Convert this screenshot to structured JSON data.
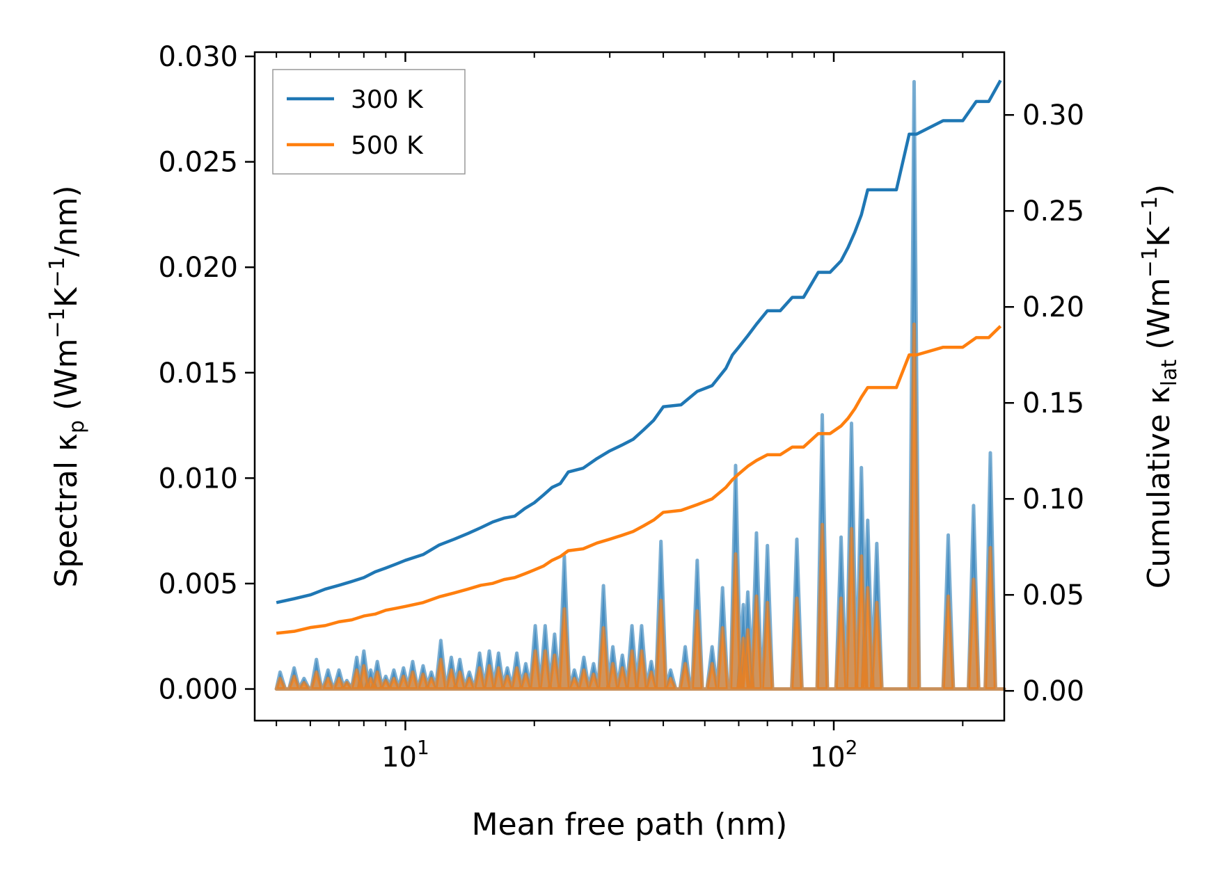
{
  "chart_data": {
    "type": "line",
    "title": "",
    "xlabel": "Mean free path (nm)",
    "xscale": "log",
    "xlim": [
      4.45,
      250
    ],
    "x_ticks": [
      {
        "value": 10,
        "label": "10",
        "exp": "1"
      },
      {
        "value": 100,
        "label": "10",
        "exp": "2"
      }
    ],
    "ylabel_left": {
      "parts": [
        "Spectral κ",
        "p",
        " (Wm",
        "−1",
        "K",
        "−1",
        "/nm)"
      ]
    },
    "ylim_left": [
      -0.0015,
      0.0302
    ],
    "yticks_left": [
      "0.000",
      "0.005",
      "0.010",
      "0.015",
      "0.020",
      "0.025",
      "0.030"
    ],
    "ylabel_right": {
      "parts": [
        "Cumulative κ",
        "lat",
        " (Wm",
        "−1",
        "K",
        "−1",
        ")"
      ]
    },
    "ylim_right": [
      -0.0155,
      0.3327
    ],
    "yticks_right": [
      "0.00",
      "0.05",
      "0.10",
      "0.15",
      "0.20",
      "0.25",
      "0.30"
    ],
    "legend_position": "top-left",
    "series": [
      {
        "name": "300 K",
        "color": "#1f77b4",
        "axis": "right",
        "x": [
          5.0,
          5.5,
          6.0,
          6.5,
          7.0,
          7.5,
          8.0,
          8.5,
          9.0,
          9.5,
          10.0,
          11.0,
          12.0,
          13.0,
          14.0,
          15.0,
          16.0,
          17.0,
          18.0,
          19.0,
          20.0,
          21.0,
          22.0,
          23.0,
          24.0,
          26.0,
          28.0,
          30.0,
          32.0,
          34.0,
          36.0,
          38.0,
          40.0,
          44.0,
          48.0,
          52.0,
          56.0,
          58.0,
          60.0,
          63.0,
          66.0,
          70.0,
          75.0,
          80.0,
          85.0,
          92.0,
          98.0,
          104.0,
          108.0,
          112.0,
          116.0,
          120.0,
          126.0,
          140.0,
          150.0,
          156.0,
          180.0,
          200.0,
          215.0,
          230.0,
          245.0
        ],
        "y": [
          0.046,
          0.048,
          0.05,
          0.053,
          0.055,
          0.057,
          0.059,
          0.062,
          0.064,
          0.066,
          0.068,
          0.071,
          0.076,
          0.079,
          0.082,
          0.085,
          0.088,
          0.09,
          0.091,
          0.095,
          0.098,
          0.102,
          0.106,
          0.108,
          0.114,
          0.116,
          0.121,
          0.125,
          0.128,
          0.131,
          0.136,
          0.141,
          0.148,
          0.149,
          0.156,
          0.159,
          0.168,
          0.175,
          0.179,
          0.185,
          0.191,
          0.198,
          0.198,
          0.205,
          0.205,
          0.218,
          0.218,
          0.224,
          0.231,
          0.239,
          0.248,
          0.261,
          0.261,
          0.261,
          0.29,
          0.29,
          0.297,
          0.297,
          0.307,
          0.307,
          0.318
        ]
      },
      {
        "name": "500 K",
        "color": "#ff7f0e",
        "axis": "right",
        "x": [
          5.0,
          5.5,
          6.0,
          6.5,
          7.0,
          7.5,
          8.0,
          8.5,
          9.0,
          9.5,
          10.0,
          11.0,
          12.0,
          13.0,
          14.0,
          15.0,
          16.0,
          17.0,
          18.0,
          19.0,
          20.0,
          21.0,
          22.0,
          23.0,
          24.0,
          26.0,
          28.0,
          30.0,
          32.0,
          34.0,
          36.0,
          38.0,
          40.0,
          44.0,
          48.0,
          52.0,
          56.0,
          58.0,
          60.0,
          63.0,
          66.0,
          70.0,
          75.0,
          80.0,
          85.0,
          92.0,
          98.0,
          104.0,
          108.0,
          112.0,
          116.0,
          120.0,
          126.0,
          140.0,
          150.0,
          156.0,
          180.0,
          200.0,
          215.0,
          230.0,
          245.0
        ],
        "y": [
          0.03,
          0.031,
          0.033,
          0.034,
          0.036,
          0.037,
          0.039,
          0.04,
          0.042,
          0.043,
          0.044,
          0.046,
          0.049,
          0.051,
          0.053,
          0.055,
          0.056,
          0.058,
          0.059,
          0.061,
          0.063,
          0.065,
          0.068,
          0.07,
          0.073,
          0.074,
          0.077,
          0.079,
          0.081,
          0.083,
          0.086,
          0.089,
          0.093,
          0.094,
          0.097,
          0.1,
          0.106,
          0.11,
          0.113,
          0.117,
          0.12,
          0.123,
          0.123,
          0.127,
          0.127,
          0.134,
          0.134,
          0.138,
          0.142,
          0.147,
          0.153,
          0.158,
          0.158,
          0.158,
          0.175,
          0.175,
          0.179,
          0.179,
          0.184,
          0.184,
          0.19
        ]
      }
    ],
    "spectral_series": [
      {
        "name": "300 K spectral",
        "color": "#1f77b4",
        "axis": "left",
        "peaks": [
          {
            "x": 5.1,
            "y": 0.0008
          },
          {
            "x": 5.5,
            "y": 0.001
          },
          {
            "x": 5.8,
            "y": 0.0005
          },
          {
            "x": 6.2,
            "y": 0.0014
          },
          {
            "x": 6.6,
            "y": 0.0009
          },
          {
            "x": 7.0,
            "y": 0.0009
          },
          {
            "x": 7.3,
            "y": 0.0004
          },
          {
            "x": 7.7,
            "y": 0.0015
          },
          {
            "x": 8.0,
            "y": 0.0018
          },
          {
            "x": 8.3,
            "y": 0.0009
          },
          {
            "x": 8.6,
            "y": 0.0013
          },
          {
            "x": 9.0,
            "y": 0.0006
          },
          {
            "x": 9.4,
            "y": 0.0009
          },
          {
            "x": 9.9,
            "y": 0.001
          },
          {
            "x": 10.4,
            "y": 0.0013
          },
          {
            "x": 11.0,
            "y": 0.0011
          },
          {
            "x": 11.5,
            "y": 0.0008
          },
          {
            "x": 12.1,
            "y": 0.0023
          },
          {
            "x": 12.8,
            "y": 0.0015
          },
          {
            "x": 13.4,
            "y": 0.0014
          },
          {
            "x": 14.1,
            "y": 0.0008
          },
          {
            "x": 14.9,
            "y": 0.0017
          },
          {
            "x": 15.7,
            "y": 0.0018
          },
          {
            "x": 16.5,
            "y": 0.0017
          },
          {
            "x": 17.3,
            "y": 0.001
          },
          {
            "x": 18.2,
            "y": 0.0017
          },
          {
            "x": 19.1,
            "y": 0.0012
          },
          {
            "x": 20.1,
            "y": 0.003
          },
          {
            "x": 21.2,
            "y": 0.003
          },
          {
            "x": 22.3,
            "y": 0.0026
          },
          {
            "x": 23.5,
            "y": 0.0063
          },
          {
            "x": 24.8,
            "y": 0.0009
          },
          {
            "x": 26.1,
            "y": 0.0015
          },
          {
            "x": 27.5,
            "y": 0.0012
          },
          {
            "x": 29.0,
            "y": 0.0049
          },
          {
            "x": 30.5,
            "y": 0.002
          },
          {
            "x": 32.1,
            "y": 0.0016
          },
          {
            "x": 33.8,
            "y": 0.003
          },
          {
            "x": 35.6,
            "y": 0.003
          },
          {
            "x": 37.5,
            "y": 0.0013
          },
          {
            "x": 39.5,
            "y": 0.007
          },
          {
            "x": 41.6,
            "y": 0.0009
          },
          {
            "x": 45.0,
            "y": 0.002
          },
          {
            "x": 48.0,
            "y": 0.0061
          },
          {
            "x": 52.0,
            "y": 0.002
          },
          {
            "x": 55.0,
            "y": 0.0048
          },
          {
            "x": 59.0,
            "y": 0.0106
          },
          {
            "x": 61.5,
            "y": 0.004
          },
          {
            "x": 63.0,
            "y": 0.0046
          },
          {
            "x": 66.0,
            "y": 0.0074
          },
          {
            "x": 70.0,
            "y": 0.0068
          },
          {
            "x": 82.0,
            "y": 0.0071
          },
          {
            "x": 94.0,
            "y": 0.013
          },
          {
            "x": 104.0,
            "y": 0.0072
          },
          {
            "x": 110.0,
            "y": 0.0126
          },
          {
            "x": 116.0,
            "y": 0.0105
          },
          {
            "x": 120.0,
            "y": 0.008
          },
          {
            "x": 126.0,
            "y": 0.0069
          },
          {
            "x": 154.0,
            "y": 0.0288
          },
          {
            "x": 185.0,
            "y": 0.0073
          },
          {
            "x": 212.0,
            "y": 0.0087
          },
          {
            "x": 232.0,
            "y": 0.0112
          }
        ]
      },
      {
        "name": "500 K spectral",
        "color": "#ff7f0e",
        "axis": "left",
        "peaks": [
          {
            "x": 5.1,
            "y": 0.0005
          },
          {
            "x": 5.5,
            "y": 0.0006
          },
          {
            "x": 5.8,
            "y": 0.0003
          },
          {
            "x": 6.2,
            "y": 0.0008
          },
          {
            "x": 6.6,
            "y": 0.0005
          },
          {
            "x": 7.0,
            "y": 0.0005
          },
          {
            "x": 7.3,
            "y": 0.0003
          },
          {
            "x": 7.7,
            "y": 0.0009
          },
          {
            "x": 8.0,
            "y": 0.0011
          },
          {
            "x": 8.3,
            "y": 0.0005
          },
          {
            "x": 8.6,
            "y": 0.0008
          },
          {
            "x": 9.0,
            "y": 0.0004
          },
          {
            "x": 9.4,
            "y": 0.0005
          },
          {
            "x": 9.9,
            "y": 0.0006
          },
          {
            "x": 10.4,
            "y": 0.0008
          },
          {
            "x": 11.0,
            "y": 0.0007
          },
          {
            "x": 11.5,
            "y": 0.0005
          },
          {
            "x": 12.1,
            "y": 0.0014
          },
          {
            "x": 12.8,
            "y": 0.0009
          },
          {
            "x": 13.4,
            "y": 0.0008
          },
          {
            "x": 14.1,
            "y": 0.0005
          },
          {
            "x": 14.9,
            "y": 0.001
          },
          {
            "x": 15.7,
            "y": 0.0011
          },
          {
            "x": 16.5,
            "y": 0.001
          },
          {
            "x": 17.3,
            "y": 0.0006
          },
          {
            "x": 18.2,
            "y": 0.001
          },
          {
            "x": 19.1,
            "y": 0.0007
          },
          {
            "x": 20.1,
            "y": 0.0018
          },
          {
            "x": 21.2,
            "y": 0.0018
          },
          {
            "x": 22.3,
            "y": 0.0016
          },
          {
            "x": 23.5,
            "y": 0.0038
          },
          {
            "x": 24.8,
            "y": 0.0005
          },
          {
            "x": 26.1,
            "y": 0.0009
          },
          {
            "x": 27.5,
            "y": 0.0007
          },
          {
            "x": 29.0,
            "y": 0.0029
          },
          {
            "x": 30.5,
            "y": 0.0012
          },
          {
            "x": 32.1,
            "y": 0.001
          },
          {
            "x": 33.8,
            "y": 0.0018
          },
          {
            "x": 35.6,
            "y": 0.0018
          },
          {
            "x": 37.5,
            "y": 0.0008
          },
          {
            "x": 39.5,
            "y": 0.0042
          },
          {
            "x": 41.6,
            "y": 0.0005
          },
          {
            "x": 45.0,
            "y": 0.0012
          },
          {
            "x": 48.0,
            "y": 0.0037
          },
          {
            "x": 52.0,
            "y": 0.0012
          },
          {
            "x": 55.0,
            "y": 0.0029
          },
          {
            "x": 59.0,
            "y": 0.0064
          },
          {
            "x": 61.5,
            "y": 0.0024
          },
          {
            "x": 63.0,
            "y": 0.0028
          },
          {
            "x": 66.0,
            "y": 0.0044
          },
          {
            "x": 70.0,
            "y": 0.0041
          },
          {
            "x": 82.0,
            "y": 0.0043
          },
          {
            "x": 94.0,
            "y": 0.0078
          },
          {
            "x": 104.0,
            "y": 0.0043
          },
          {
            "x": 110.0,
            "y": 0.0076
          },
          {
            "x": 116.0,
            "y": 0.0063
          },
          {
            "x": 120.0,
            "y": 0.0048
          },
          {
            "x": 126.0,
            "y": 0.0041
          },
          {
            "x": 154.0,
            "y": 0.0173
          },
          {
            "x": 185.0,
            "y": 0.0044
          },
          {
            "x": 212.0,
            "y": 0.0052
          },
          {
            "x": 232.0,
            "y": 0.0067
          }
        ]
      }
    ]
  }
}
